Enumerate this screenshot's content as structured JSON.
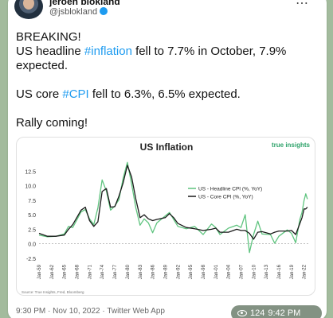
{
  "post": {
    "author_name": "jeroen blokland",
    "author_handle": "@jsblokland",
    "paragraphs": [
      {
        "pre": "BREAKING!\nUS headline ",
        "hashtag": "#inflation",
        "post": " fell to 7.7% in October, 7.9% expected."
      },
      {
        "pre": "US core ",
        "hashtag": "#CPI",
        "post": " fell to 6.3%, 6.5% expected."
      },
      {
        "pre": "Rally coming!",
        "hashtag": "",
        "post": ""
      }
    ],
    "footer": "9:30 PM · Nov 10, 2022 · Twitter Web App",
    "views": "124",
    "time": "9:42 PM"
  },
  "colors": {
    "hashtag": "#1d9bf0",
    "headline_series": "#5fc47f",
    "core_series": "#1a1a1a",
    "brand": "#2fa36b"
  },
  "chart_data": {
    "type": "line",
    "title": "US Inflation",
    "brand": "true insights",
    "source": "Source: True Insights, Fred, Bloomberg",
    "ylim": [
      -2.5,
      15
    ],
    "yticks": [
      "12.5",
      "10.0",
      "7.5",
      "5.0",
      "2.5",
      "0.0",
      "-2.5"
    ],
    "xticks": [
      "Jan-59",
      "Jan-62",
      "Jan-65",
      "Jan-68",
      "Jan-71",
      "Jan-74",
      "Jan-77",
      "Jan-80",
      "Jan-83",
      "Jan-86",
      "Jan-89",
      "Jan-92",
      "Jan-95",
      "Jan-98",
      "Jan-01",
      "Jan-04",
      "Jan-07",
      "Jan-10",
      "Jan-13",
      "Jan-16",
      "Jan-19",
      "Jan-22"
    ],
    "legend_position": "top-right",
    "series": [
      {
        "name": "US - Headline CPI (%, YoY)",
        "x": [
          1959,
          1961,
          1963,
          1965,
          1966,
          1967,
          1969,
          1970,
          1971,
          1972,
          1973,
          1974,
          1975,
          1976,
          1977,
          1978,
          1979,
          1980,
          1981,
          1982,
          1983,
          1984,
          1985,
          1986,
          1987,
          1989,
          1990,
          1991,
          1992,
          1994,
          1996,
          1998,
          2000,
          2001,
          2002,
          2004,
          2006,
          2007,
          2008,
          2009,
          2010,
          2011,
          2012,
          2014,
          2015,
          2016,
          2018,
          2019,
          2020,
          2021,
          2021.5,
          2022,
          2022.4,
          2022.8
        ],
        "values": [
          1.5,
          1.2,
          1.3,
          1.7,
          3.0,
          2.8,
          5.5,
          5.9,
          4.3,
          3.3,
          6.2,
          11.0,
          9.1,
          5.8,
          6.5,
          7.6,
          11.3,
          14.0,
          10.3,
          6.2,
          3.2,
          4.3,
          3.6,
          1.9,
          3.6,
          4.8,
          5.4,
          4.2,
          3.0,
          2.6,
          3.0,
          1.6,
          3.4,
          2.8,
          1.6,
          2.7,
          3.2,
          2.8,
          5.0,
          -1.5,
          1.6,
          3.9,
          1.7,
          1.6,
          0.1,
          1.3,
          2.4,
          1.8,
          0.2,
          4.2,
          5.4,
          7.5,
          8.6,
          7.7
        ]
      },
      {
        "name": "US - Core CPI (%, YoY)",
        "x": [
          1959,
          1961,
          1963,
          1965,
          1966,
          1967,
          1969,
          1970,
          1971,
          1972,
          1973,
          1974,
          1975,
          1976,
          1977,
          1978,
          1979,
          1980,
          1981,
          1982,
          1983,
          1984,
          1985,
          1986,
          1987,
          1989,
          1990,
          1991,
          1992,
          1994,
          1996,
          1998,
          2000,
          2001,
          2002,
          2004,
          2006,
          2007,
          2008,
          2009,
          2010,
          2011,
          2012,
          2014,
          2015,
          2016,
          2018,
          2019,
          2020,
          2021,
          2021.5,
          2022,
          2022.4,
          2022.8
        ],
        "values": [
          1.8,
          1.3,
          1.3,
          1.5,
          2.5,
          3.3,
          5.8,
          6.3,
          4.0,
          3.0,
          3.8,
          9.0,
          9.5,
          6.3,
          6.4,
          8.2,
          10.5,
          13.5,
          11.5,
          7.7,
          4.5,
          5.0,
          4.3,
          4.0,
          4.2,
          4.5,
          5.2,
          4.5,
          3.5,
          2.8,
          2.6,
          2.3,
          2.5,
          2.7,
          2.0,
          2.0,
          2.5,
          2.3,
          2.3,
          1.8,
          0.8,
          2.0,
          2.1,
          1.7,
          2.0,
          2.2,
          2.2,
          2.3,
          1.6,
          3.5,
          4.5,
          6.0,
          6.0,
          6.3
        ]
      }
    ]
  }
}
